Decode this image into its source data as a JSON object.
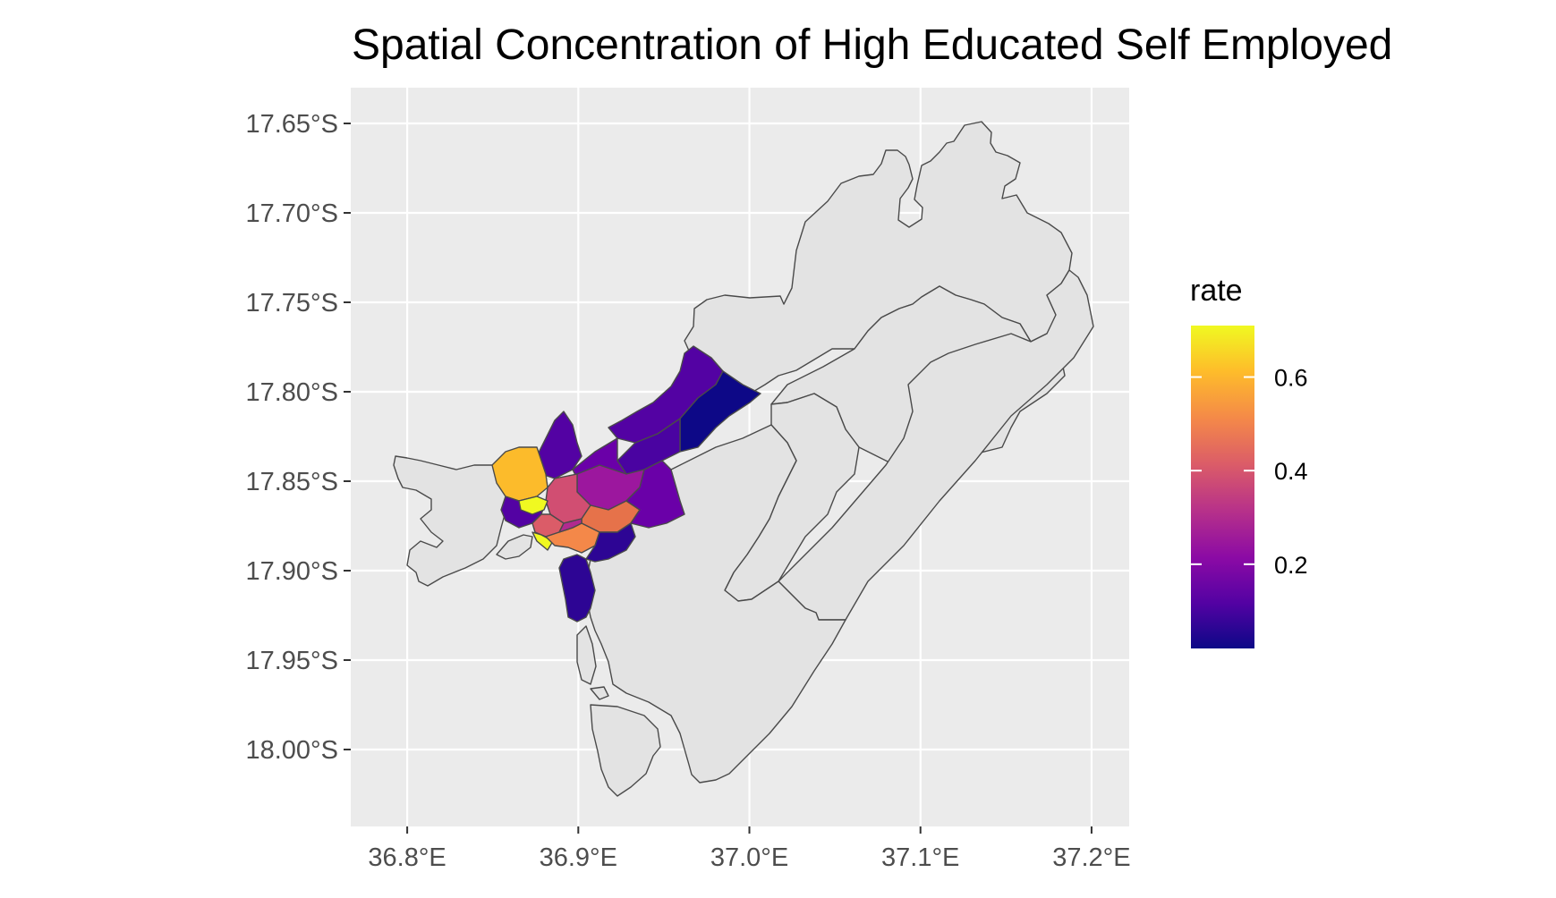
{
  "title": "Spatial Concentration of High Educated Self Employed",
  "colors": {
    "panel_background": "#ebebeb",
    "grid": "#ffffff",
    "no_data_fill": "#e3e3e3",
    "boundary": "#4a4a4a",
    "palette": [
      "#0d0887",
      "#5302a3",
      "#8b0aa5",
      "#b83289",
      "#db5c68",
      "#f48849",
      "#febd2a",
      "#f0f921"
    ]
  },
  "chart_data": {
    "type": "choropleth",
    "color_scale": "plasma",
    "x_axis": {
      "ticks": [
        36.8,
        36.9,
        37.0,
        37.1,
        37.2
      ],
      "tick_labels": [
        "36.8°E",
        "36.9°E",
        "37.0°E",
        "37.1°E",
        "37.2°E"
      ],
      "range": [
        36.767,
        37.222
      ]
    },
    "y_axis": {
      "ticks": [
        -17.65,
        -17.7,
        -17.75,
        -17.8,
        -17.85,
        -17.9,
        -17.95,
        -18.0
      ],
      "tick_labels": [
        "17.65°S",
        "17.70°S",
        "17.75°S",
        "17.80°S",
        "17.85°S",
        "17.90°S",
        "17.95°S",
        "18.00°S"
      ],
      "range": [
        -18.043,
        -17.63
      ]
    },
    "legend": {
      "title": "rate",
      "position": "right",
      "range": [
        0.02,
        0.71
      ],
      "breaks": [
        0.2,
        0.4,
        0.6
      ],
      "break_labels": [
        "0.2",
        "0.4",
        "0.6"
      ]
    },
    "grid": true
  }
}
